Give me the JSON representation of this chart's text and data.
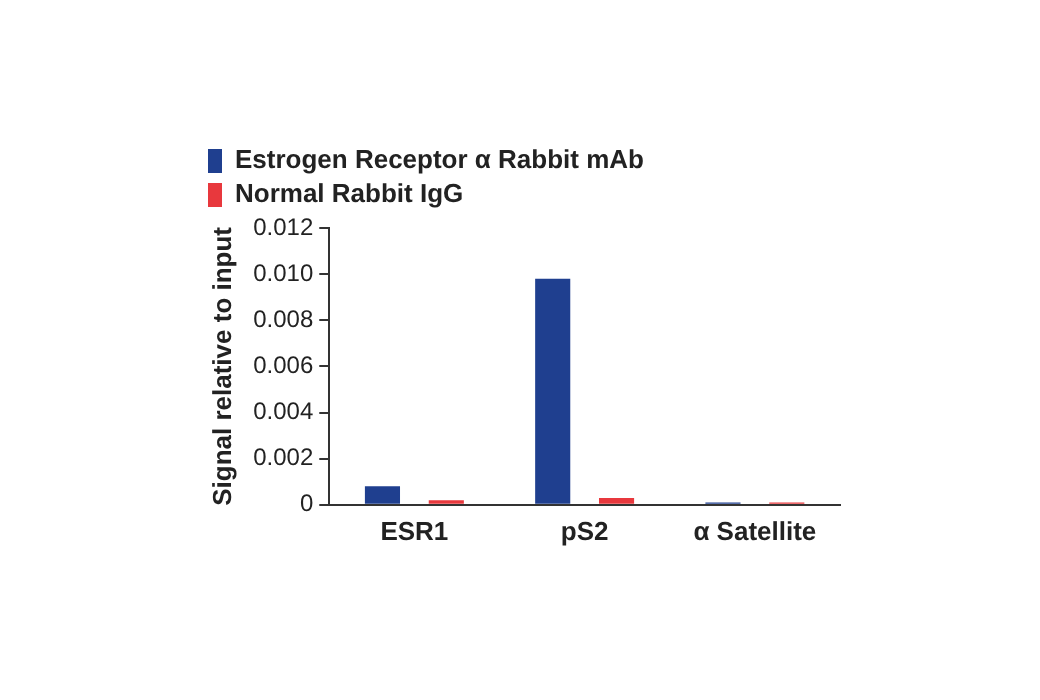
{
  "chart_data": {
    "type": "bar",
    "ylabel": "Signal relative to input",
    "categories": [
      "ESR1",
      "pS2",
      "α Satellite"
    ],
    "series": [
      {
        "name": "Estrogen Receptor α Rabbit mAb",
        "color": "#1f3f8f",
        "values": [
          0.0008,
          0.0098,
          0.0001
        ]
      },
      {
        "name": "Normal Rabbit IgG",
        "color": "#e8383d",
        "values": [
          0.0002,
          0.0003,
          0.0001
        ]
      }
    ],
    "ylim": [
      0,
      0.012
    ],
    "yticks": [
      0,
      0.002,
      0.004,
      0.006,
      0.008,
      {
        "value": 0.01,
        "label": "0.010"
      },
      0.012
    ],
    "grid": false,
    "legend": "top left"
  }
}
